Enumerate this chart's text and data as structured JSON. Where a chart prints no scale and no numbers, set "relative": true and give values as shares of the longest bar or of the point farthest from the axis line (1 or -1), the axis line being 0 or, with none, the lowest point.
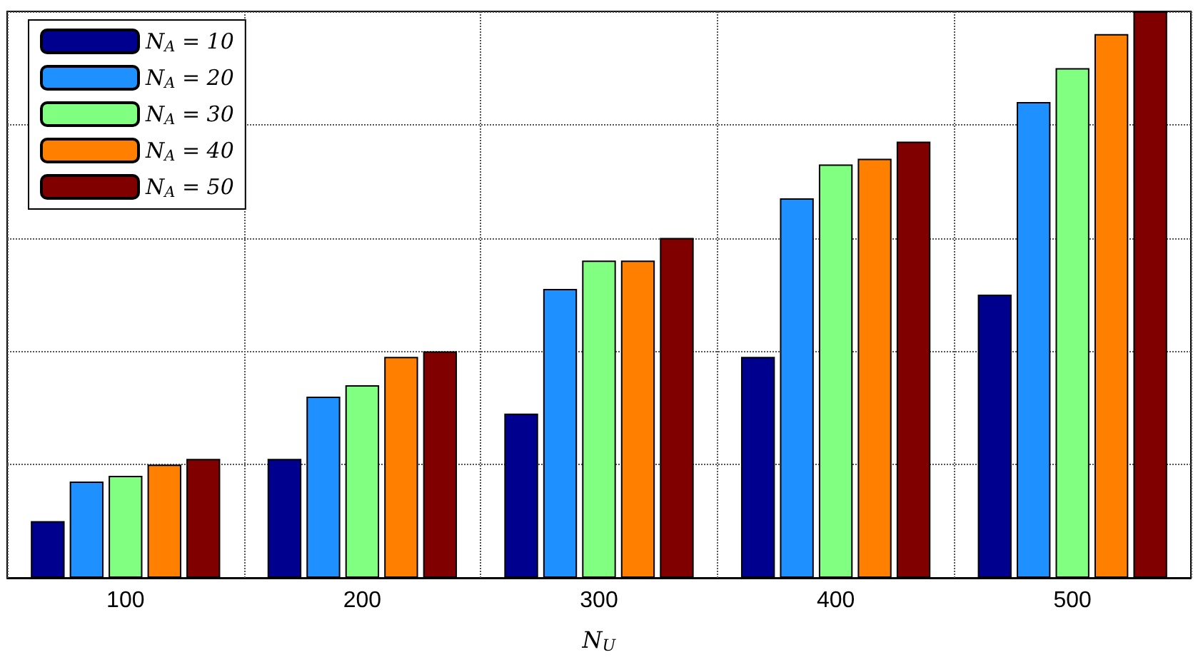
{
  "chart_data": {
    "type": "bar",
    "relative": true,
    "xlabel": "N$_{U}$",
    "categories": [
      "100",
      "200",
      "300",
      "400",
      "500"
    ],
    "series": [
      {
        "name": "N$_{A}$ = 10",
        "color": "#00008f",
        "values": [
          0.1,
          0.21,
          0.29,
          0.39,
          0.5
        ]
      },
      {
        "name": "N$_{A}$ = 20",
        "color": "#1e90ff",
        "values": [
          0.17,
          0.32,
          0.51,
          0.67,
          0.84
        ]
      },
      {
        "name": "N$_{A}$ = 30",
        "color": "#80ff80",
        "values": [
          0.18,
          0.34,
          0.56,
          0.73,
          0.9
        ]
      },
      {
        "name": "N$_{A}$ = 40",
        "color": "#ff7f00",
        "values": [
          0.2,
          0.39,
          0.56,
          0.74,
          0.96
        ]
      },
      {
        "name": "N$_{A}$ = 50",
        "color": "#800000",
        "values": [
          0.21,
          0.4,
          0.6,
          0.77,
          1
        ]
      }
    ],
    "grid": true,
    "legend": "top left"
  }
}
